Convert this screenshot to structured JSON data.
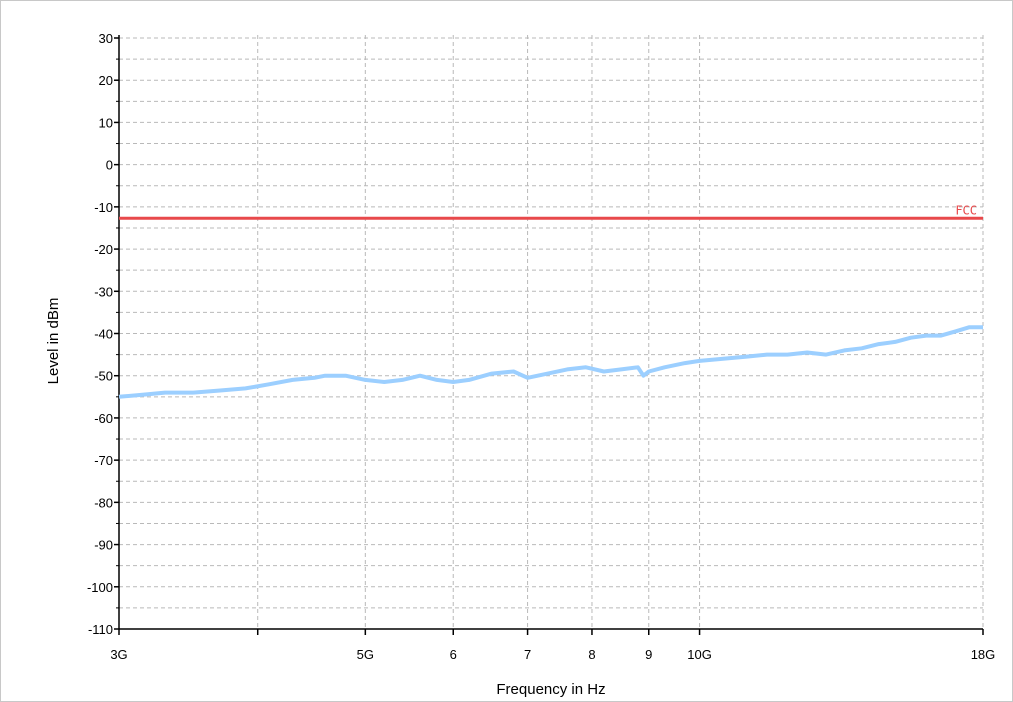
{
  "chart_data": {
    "type": "line",
    "title": "",
    "xlabel": "Frequency in Hz",
    "ylabel": "Level in dBm",
    "x_scale": "log",
    "xlim": [
      3000000000,
      18000000000
    ],
    "ylim": [
      -110,
      30
    ],
    "grid": true,
    "x_major_ticks": [
      {
        "value": 3000000000,
        "label": "3G"
      },
      {
        "value": 5000000000,
        "label": "5G"
      },
      {
        "value": 6000000000,
        "label": "6"
      },
      {
        "value": 7000000000,
        "label": "7"
      },
      {
        "value": 8000000000,
        "label": "8"
      },
      {
        "value": 9000000000,
        "label": "9"
      },
      {
        "value": 10000000000,
        "label": "10G"
      },
      {
        "value": 18000000000,
        "label": "18G"
      }
    ],
    "x_minor_ticks": [
      4000000000
    ],
    "y_ticks": [
      30,
      20,
      10,
      0,
      -10,
      -20,
      -30,
      -40,
      -50,
      -60,
      -70,
      -80,
      -90,
      -100,
      -110
    ],
    "limit_line": {
      "name": "FCC",
      "value": -12.7,
      "color": "#e8494b"
    },
    "series": [
      {
        "color": "#9ccfff",
        "x": [
          3000000000,
          3150000000,
          3300000000,
          3500000000,
          3700000000,
          3900000000,
          4100000000,
          4300000000,
          4500000000,
          4600000000,
          4800000000,
          5000000000,
          5200000000,
          5400000000,
          5500000000,
          5600000000,
          5800000000,
          6000000000,
          6200000000,
          6500000000,
          6800000000,
          7000000000,
          7300000000,
          7600000000,
          7900000000,
          8200000000,
          8500000000,
          8800000000,
          8900000000,
          9000000000,
          9300000000,
          9700000000,
          10000000000,
          10500000000,
          11000000000,
          11500000000,
          12000000000,
          12500000000,
          13000000000,
          13500000000,
          14000000000,
          14500000000,
          15000000000,
          15500000000,
          16000000000,
          16500000000,
          17000000000,
          17500000000,
          18000000000
        ],
        "y": [
          -55,
          -54.5,
          -54,
          -54,
          -53.5,
          -53,
          -52,
          -51,
          -50.5,
          -50,
          -50,
          -51,
          -51.5,
          -51,
          -50.5,
          -50,
          -51,
          -51.5,
          -51,
          -49.5,
          -49,
          -50.5,
          -49.5,
          -48.5,
          -48,
          -49,
          -48.5,
          -48,
          -50,
          -49,
          -48,
          -47,
          -46.5,
          -46,
          -45.5,
          -45,
          -45,
          -44.5,
          -45,
          -44,
          -43.5,
          -42.5,
          -42,
          -41,
          -40.5,
          -40.5,
          -39.5,
          -38.5,
          -38.5
        ]
      }
    ]
  }
}
